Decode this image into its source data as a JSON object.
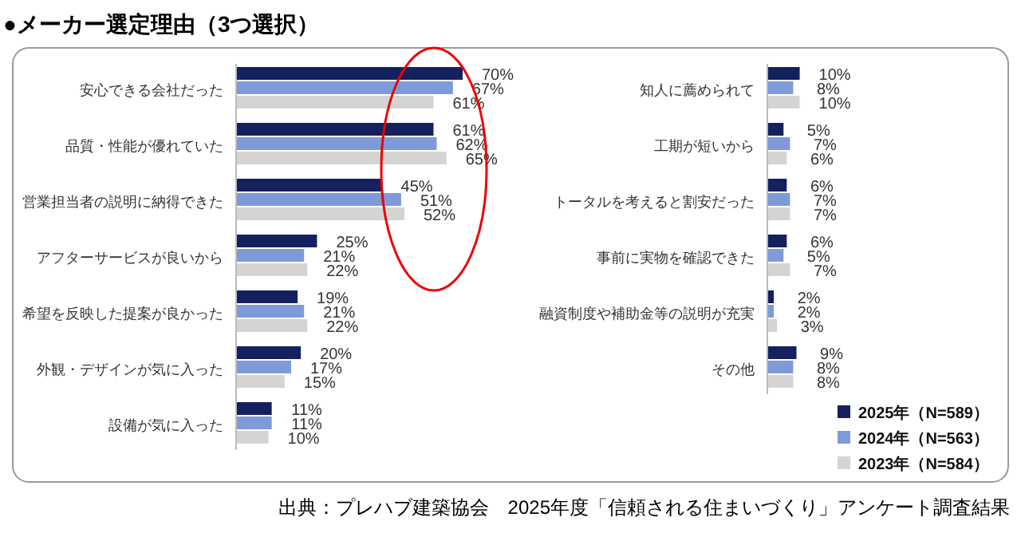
{
  "chart_data": [
    {
      "type": "bar",
      "orientation": "horizontal",
      "title": "●メーカー選定理由（3つ選択）",
      "categories": [
        "安心できる会社だった",
        "品質・性能が優れていた",
        "営業担当者の説明に納得できた",
        "アフターサービスが良いから",
        "希望を反映した提案が良かった",
        "外観・デザインが気に入った",
        "設備が気に入った"
      ],
      "series": [
        {
          "color": "#14215e",
          "values": [
            70,
            61,
            45,
            25,
            19,
            20,
            11
          ],
          "value_labels": [
            "70%",
            "61%",
            "45%",
            "25%",
            "19%",
            "20%",
            "11%"
          ]
        },
        {
          "color": "#7f9ad8",
          "values": [
            67,
            62,
            51,
            21,
            21,
            17,
            11
          ],
          "value_labels": [
            "67%",
            "62%",
            "51%",
            "21%",
            "21%",
            "17%",
            "11%"
          ]
        },
        {
          "color": "#d4d4d4",
          "values": [
            61,
            65,
            52,
            22,
            22,
            15,
            10
          ],
          "value_labels": [
            "61%",
            "65%",
            "52%",
            "22%",
            "22%",
            "15%",
            "10%"
          ]
        }
      ],
      "legend": false
    },
    {
      "type": "bar",
      "orientation": "horizontal",
      "categories": [
        "知人に薦められて",
        "工期が短いから",
        "トータルを考えると割安だった",
        "事前に実物を確認できた",
        "融資制度や補助金等の説明が充実",
        "その他"
      ],
      "series": [
        {
          "name": "2025年（N=589）",
          "color": "#14215e",
          "values": [
            10,
            5,
            6,
            6,
            2,
            9
          ],
          "value_labels": [
            "10%",
            "5%",
            "6%",
            "6%",
            "2%",
            "9%"
          ]
        },
        {
          "name": "2024年（N=563）",
          "color": "#7f9ad8",
          "values": [
            8,
            7,
            7,
            5,
            2,
            8
          ],
          "value_labels": [
            "8%",
            "7%",
            "7%",
            "5%",
            "2%",
            "8%"
          ]
        },
        {
          "name": "2023年（N=584）",
          "color": "#d4d4d4",
          "values": [
            10,
            6,
            7,
            7,
            3,
            8
          ],
          "value_labels": [
            "10%",
            "6%",
            "7%",
            "7%",
            "3%",
            "8%"
          ]
        }
      ],
      "legend": "bottom right",
      "annotations": [
        "出典：プレハブ建築協会　2025年度「信頼される住まいづくり」アンケート調査結果"
      ]
    }
  ]
}
